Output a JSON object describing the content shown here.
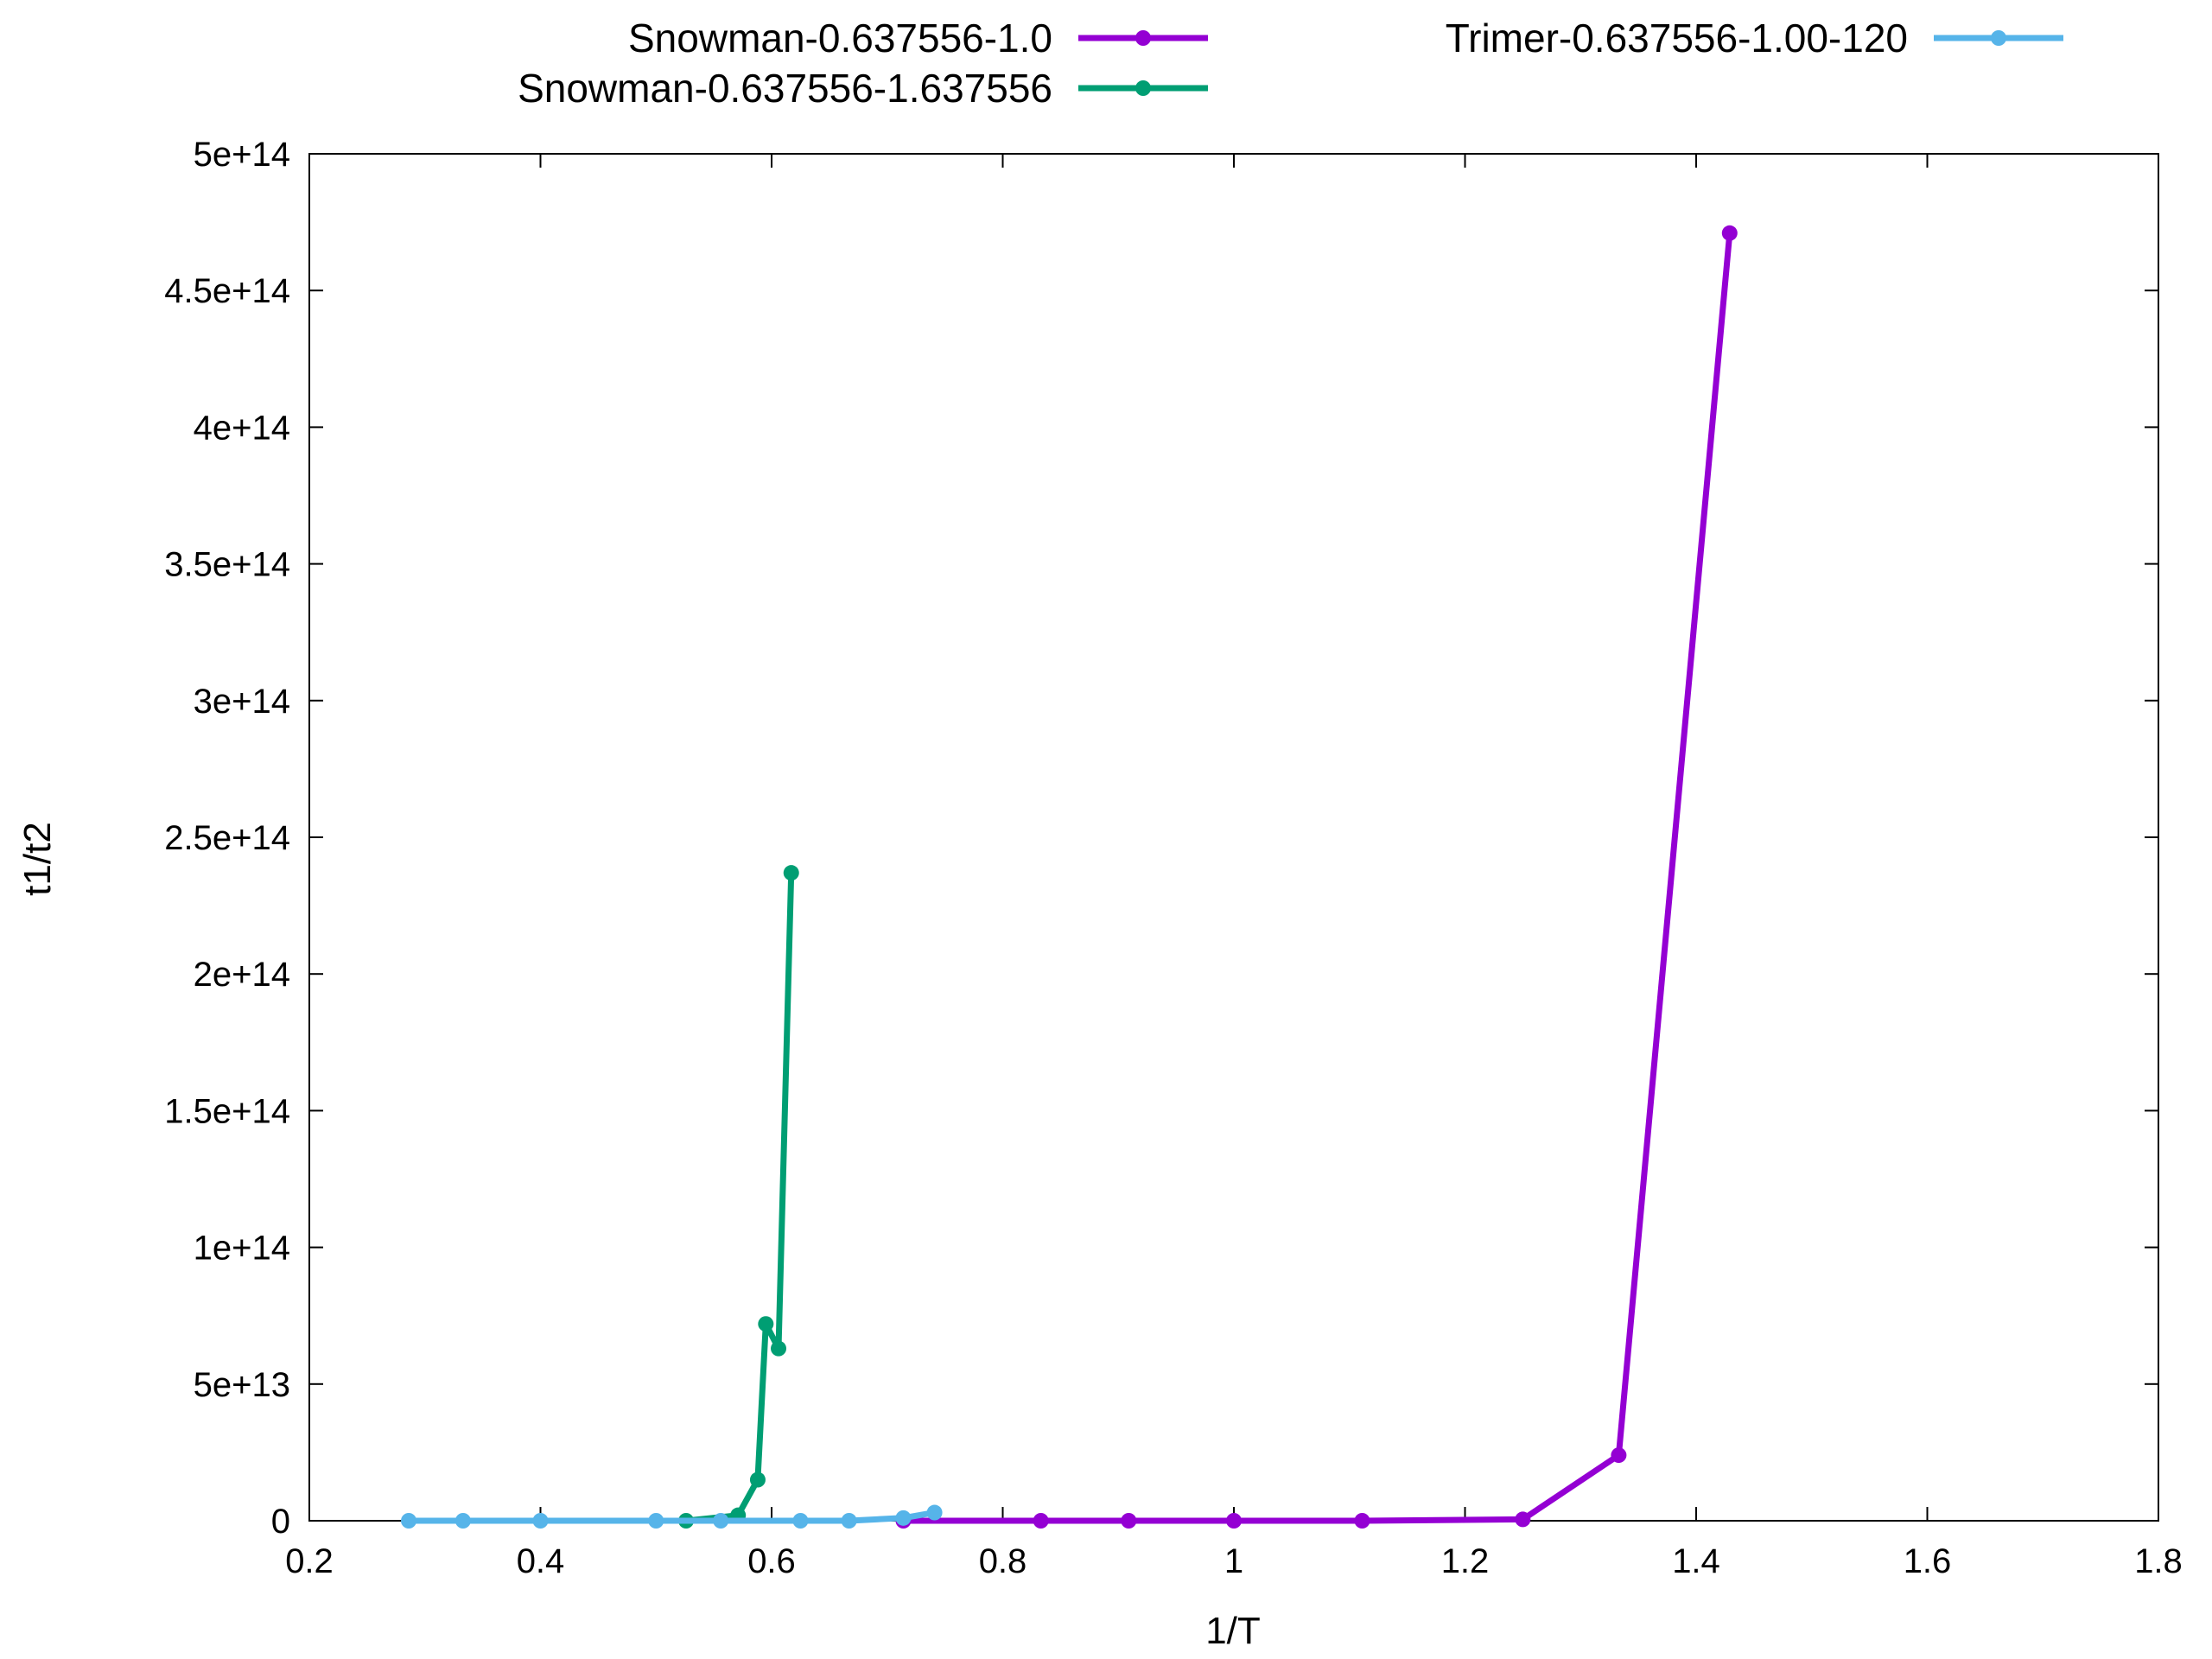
{
  "chart_data": {
    "type": "line",
    "title": "",
    "xlabel": "1/T",
    "ylabel": "t1/t2",
    "xlim": [
      0.2,
      1.8
    ],
    "ylim": [
      0,
      500000000000000.0
    ],
    "x_ticks": [
      0.2,
      0.4,
      0.6,
      0.8,
      1.0,
      1.2,
      1.4,
      1.6,
      1.8
    ],
    "x_tick_labels": [
      "0.2",
      "0.4",
      "0.6",
      "0.8",
      "1",
      "1.2",
      "1.4",
      "1.6",
      "1.8"
    ],
    "y_ticks": [
      0,
      50000000000000.0,
      100000000000000.0,
      150000000000000.0,
      200000000000000.0,
      250000000000000.0,
      300000000000000.0,
      350000000000000.0,
      400000000000000.0,
      450000000000000.0,
      500000000000000.0
    ],
    "y_tick_labels": [
      "0",
      "5e+13",
      "1e+14",
      "1.5e+14",
      "2e+14",
      "2.5e+14",
      "3e+14",
      "3.5e+14",
      "4e+14",
      "4.5e+14",
      "5e+14"
    ],
    "grid": false,
    "legend_position": "top",
    "series": [
      {
        "name": "Snowman-0.637556-1.0",
        "color": "#9400d3",
        "x": [
          0.714,
          0.833,
          0.909,
          1.0,
          1.111,
          1.25,
          1.333,
          1.429
        ],
        "y": [
          0,
          0,
          0,
          0,
          0,
          500000000000.0,
          24000000000000.0,
          471000000000000.0
        ]
      },
      {
        "name": "Snowman-0.637556-1.637556",
        "color": "#009e73",
        "x": [
          0.526,
          0.571,
          0.588,
          0.595,
          0.606,
          0.617
        ],
        "y": [
          0,
          2000000000000.0,
          15000000000000.0,
          72000000000000.0,
          63000000000000.0,
          237000000000000.0
        ]
      },
      {
        "name": "Trimer-0.637556-1.00-120",
        "color": "#56b4e9",
        "x": [
          0.286,
          0.333,
          0.4,
          0.5,
          0.556,
          0.625,
          0.667,
          0.714,
          0.741
        ],
        "y": [
          0,
          0,
          0,
          0,
          0,
          0,
          0,
          1000000000000.0,
          3000000000000.0
        ]
      }
    ]
  }
}
